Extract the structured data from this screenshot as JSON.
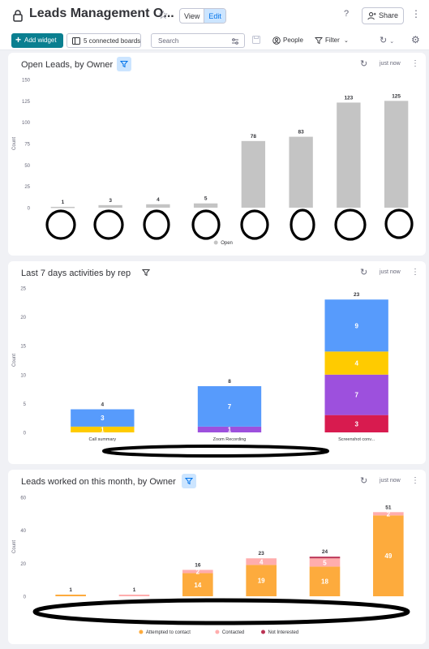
{
  "board": {
    "title": "Leads Management O...",
    "view_label": "View",
    "edit_label": "Edit",
    "help_label": "?",
    "share_label": "Share"
  },
  "toolbar": {
    "add_widget_label": "Add widget",
    "connected_boards_label": "5 connected boards",
    "search_placeholder": "Search",
    "people_label": "People",
    "filter_label": "Filter"
  },
  "widgets": [
    {
      "title": "Open Leads, by Owner",
      "updated": "just now",
      "filter_active": true
    },
    {
      "title": "Last 7 days activities by rep",
      "updated": "just now",
      "filter_active": false
    },
    {
      "title": "Leads worked on this month, by Owner",
      "updated": "just now",
      "filter_active": true
    }
  ],
  "chart_data": [
    {
      "type": "bar",
      "ylabel": "Count",
      "ylim": [
        0,
        150
      ],
      "yticks": [
        0,
        25,
        50,
        75,
        100,
        125,
        150
      ],
      "categories": [
        "",
        "",
        "",
        "",
        "",
        "",
        "",
        ""
      ],
      "series": [
        {
          "name": "Open",
          "color": "#c4c4c4",
          "values": [
            1,
            3,
            4,
            5,
            78,
            83,
            123,
            125
          ]
        }
      ],
      "totals": [
        1,
        3,
        4,
        5,
        78,
        83,
        123,
        125
      ],
      "legend": "bottom"
    },
    {
      "type": "bar",
      "stacked": true,
      "ylabel": "Count",
      "ylim": [
        0,
        25
      ],
      "yticks": [
        0,
        5,
        10,
        15,
        20,
        25
      ],
      "categories": [
        "Call summary",
        "Zoom Recording",
        "Screenshot conv..."
      ],
      "series": [
        {
          "name": "",
          "color": "#d81b4f",
          "values": [
            0,
            0,
            3
          ]
        },
        {
          "name": "",
          "color": "#9d50dd",
          "values": [
            0,
            1,
            7
          ]
        },
        {
          "name": "",
          "color": "#ffcb00",
          "values": [
            1,
            0,
            4
          ]
        },
        {
          "name": "",
          "color": "#579bfc",
          "values": [
            3,
            7,
            9
          ]
        }
      ],
      "segment_labels": [
        [
          "",
          "",
          "1",
          "3"
        ],
        [
          "",
          "1",
          "",
          "7"
        ],
        [
          "3",
          "7",
          "4",
          "9"
        ]
      ],
      "totals": [
        4,
        8,
        23
      ]
    },
    {
      "type": "bar",
      "stacked": true,
      "ylabel": "Count",
      "ylim": [
        0,
        60
      ],
      "yticks": [
        0,
        20,
        40,
        60
      ],
      "categories": [
        "",
        "",
        "",
        "",
        "",
        ""
      ],
      "series": [
        {
          "name": "Attempted to contact",
          "color": "#fdab3d",
          "values": [
            1,
            0,
            14,
            19,
            18,
            49
          ]
        },
        {
          "name": "Contacted",
          "color": "#ffadad",
          "values": [
            0,
            1,
            2,
            4,
            5,
            2
          ]
        },
        {
          "name": "Not Interested",
          "color": "#bb3354",
          "values": [
            0,
            0,
            0,
            0,
            1,
            0
          ]
        }
      ],
      "segment_labels": [
        [
          "",
          "",
          ""
        ],
        [
          "",
          "",
          ""
        ],
        [
          "14",
          "2",
          ""
        ],
        [
          "19",
          "4",
          ""
        ],
        [
          "18",
          "5",
          ""
        ],
        [
          "49",
          "2",
          ""
        ]
      ],
      "totals": [
        1,
        1,
        16,
        23,
        24,
        51
      ],
      "legend": "bottom"
    }
  ]
}
